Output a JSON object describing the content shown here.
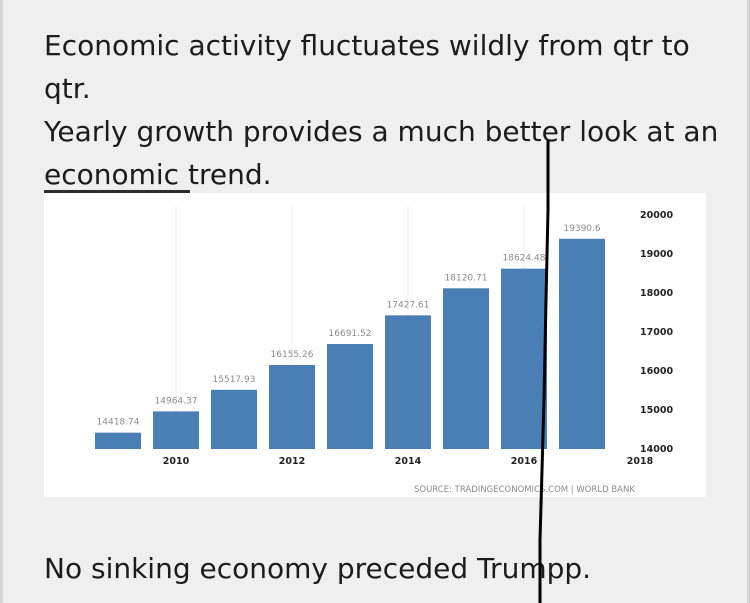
{
  "post": {
    "line1": "Economic activity fluctuates wildly from qtr to qtr.",
    "line2": "Yearly growth provides a much better look at an",
    "line3": "economic trend.",
    "footer": "No sinking economy preceded Trumpp."
  },
  "chart_data": {
    "type": "bar",
    "categories": [
      "2009",
      "2010",
      "2011",
      "2012",
      "2013",
      "2014",
      "2015",
      "2016",
      "2017"
    ],
    "values": [
      14418.74,
      14964.37,
      15517.93,
      16155.26,
      16691.52,
      17427.61,
      18120.71,
      18624.48,
      19390.6
    ],
    "value_labels": [
      "14418.74",
      "14964.37",
      "15517.93",
      "16155.26",
      "16691.52",
      "17427.61",
      "18120.71",
      "18624.48",
      "19390.6"
    ],
    "ylim": [
      14000,
      20000
    ],
    "y_ticks": [
      "14000",
      "15000",
      "16000",
      "17000",
      "18000",
      "19000",
      "20000"
    ],
    "x_ticks": [
      "2010",
      "2012",
      "2014",
      "2016",
      "2018"
    ],
    "y_axis_side": "right",
    "source": "SOURCE: TRADINGECONOMICS.COM | WORLD BANK",
    "bar_color": "#4a7fb5"
  }
}
